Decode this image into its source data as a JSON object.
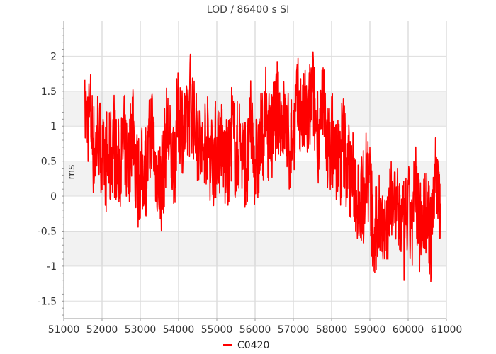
{
  "chart_data": {
    "type": "line",
    "title": "LOD / 86400 s SI",
    "xlabel": "",
    "ylabel": "ms",
    "xlim": [
      51000,
      61000
    ],
    "ylim": [
      -1.75,
      2.5
    ],
    "x_ticks": [
      "51000",
      "52000",
      "53000",
      "54000",
      "55000",
      "56000",
      "57000",
      "58000",
      "59000",
      "60000",
      "61000"
    ],
    "y_ticks": [
      "-1.5",
      "-1",
      "-0.5",
      "0",
      "0.5",
      "1",
      "1.5",
      "2"
    ],
    "grid": true,
    "legend_position": "bottom-center",
    "colors": {
      "series": "#ff0000",
      "band": "#f2f2f2",
      "grid": "#cccccc"
    },
    "series": [
      {
        "name": "C0420",
        "x": [
          51550,
          51700,
          51800,
          51900,
          52000,
          52100,
          52200,
          52300,
          52400,
          52500,
          52600,
          52700,
          52800,
          52900,
          53000,
          53100,
          53200,
          53300,
          53400,
          53500,
          53600,
          53700,
          53800,
          53900,
          54000,
          54100,
          54200,
          54300,
          54400,
          54500,
          54600,
          54700,
          54800,
          54900,
          55000,
          55100,
          55200,
          55300,
          55400,
          55500,
          55600,
          55700,
          55800,
          55900,
          56000,
          56100,
          56200,
          56300,
          56400,
          56500,
          56600,
          56700,
          56800,
          56900,
          57000,
          57100,
          57200,
          57300,
          57400,
          57500,
          57600,
          57700,
          57800,
          57900,
          58000,
          58100,
          58200,
          58300,
          58400,
          58500,
          58600,
          58700,
          58800,
          58900,
          59000,
          59100,
          59200,
          59300,
          59400,
          59500,
          59600,
          59700,
          59800,
          59900,
          60000,
          60100,
          60200,
          60300,
          60400,
          60500,
          60600,
          60700,
          60800,
          60850
        ],
        "y": [
          1.2,
          1.1,
          0.6,
          0.9,
          0.5,
          0.5,
          0.4,
          0.9,
          0.3,
          0.6,
          0.7,
          0.4,
          1.2,
          0.3,
          0.2,
          0.4,
          0.5,
          1.0,
          0.4,
          0.2,
          0.3,
          1.0,
          0.5,
          0.6,
          1.2,
          1.0,
          0.9,
          1.4,
          1.1,
          0.9,
          0.5,
          0.8,
          0.7,
          0.6,
          0.7,
          0.8,
          0.5,
          0.4,
          1.0,
          0.5,
          0.8,
          0.6,
          0.4,
          1.0,
          0.5,
          0.6,
          0.9,
          1.1,
          0.8,
          1.0,
          1.2,
          1.1,
          1.0,
          0.6,
          0.9,
          1.3,
          1.2,
          1.1,
          1.1,
          1.5,
          1.0,
          0.9,
          1.3,
          0.7,
          0.8,
          0.6,
          0.4,
          0.8,
          0.5,
          0.3,
          0.2,
          0.0,
          -0.1,
          0.4,
          0.2,
          -0.8,
          -0.4,
          -0.2,
          -0.5,
          -0.3,
          0.1,
          -0.2,
          -0.3,
          -0.6,
          -0.2,
          -0.4,
          0.1,
          -0.3,
          -0.2,
          -0.3,
          -0.7,
          0.4,
          0.1,
          -0.2
        ]
      }
    ]
  }
}
